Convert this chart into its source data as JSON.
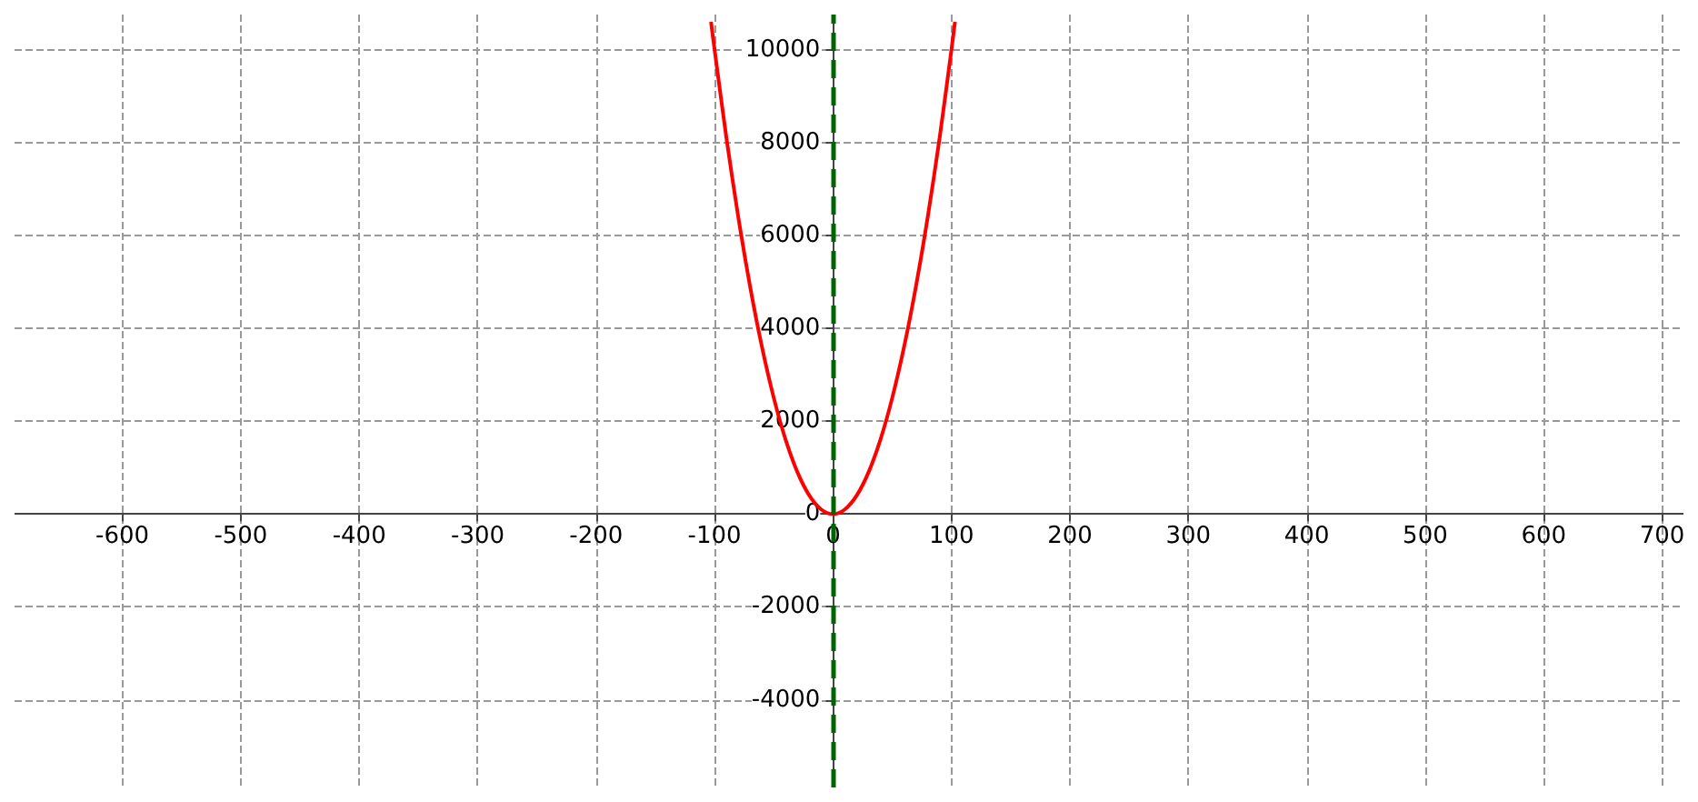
{
  "chart_data": {
    "type": "line",
    "x": [
      -103,
      -100,
      -90,
      -80,
      -70,
      -60,
      -50,
      -40,
      -30,
      -20,
      -10,
      0,
      10,
      20,
      30,
      40,
      50,
      60,
      70,
      80,
      90,
      100,
      103
    ],
    "series": [
      {
        "color": "#ff0000",
        "values": [
          10600,
          10000,
          8100,
          6400,
          4900,
          3600,
          2500,
          1600,
          900,
          400,
          100,
          0,
          100,
          400,
          900,
          1600,
          2500,
          3600,
          4900,
          6400,
          8100,
          10000,
          10600
        ]
      }
    ],
    "xlim": [
      -691,
      718
    ],
    "ylim": [
      -5887,
      10755
    ],
    "xticks": [
      -600,
      -500,
      -400,
      -300,
      -200,
      -100,
      0,
      100,
      200,
      300,
      400,
      500,
      600,
      700
    ],
    "yticks": [
      -4000,
      -2000,
      0,
      2000,
      4000,
      6000,
      8000,
      10000
    ],
    "ref_lines": [
      {
        "axis": "x",
        "value": 0,
        "color": "#006400",
        "line_style": "dashed"
      }
    ],
    "grid": true,
    "marker": "none",
    "line_style": "solid"
  }
}
